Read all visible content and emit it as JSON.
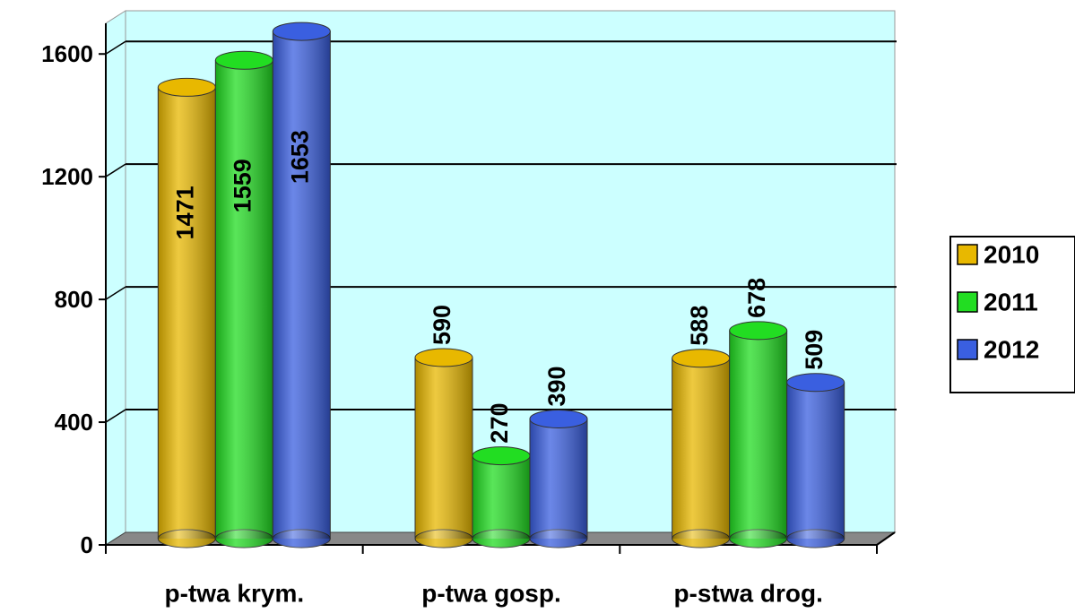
{
  "chart_data": {
    "type": "bar",
    "categories": [
      "p-twa krym.",
      "p-twa gosp.",
      "p-stwa drog."
    ],
    "series": [
      {
        "name": "2010",
        "color": "#e8b800",
        "values": [
          1471,
          590,
          588
        ]
      },
      {
        "name": "2011",
        "color": "#22dd22",
        "values": [
          1559,
          270,
          678
        ]
      },
      {
        "name": "2012",
        "color": "#3a5fe0",
        "values": [
          1653,
          390,
          509
        ]
      }
    ],
    "ylim": [
      0,
      1700
    ],
    "yticks": [
      0,
      400,
      800,
      1200,
      1600
    ],
    "grid": true,
    "legend": "right"
  }
}
